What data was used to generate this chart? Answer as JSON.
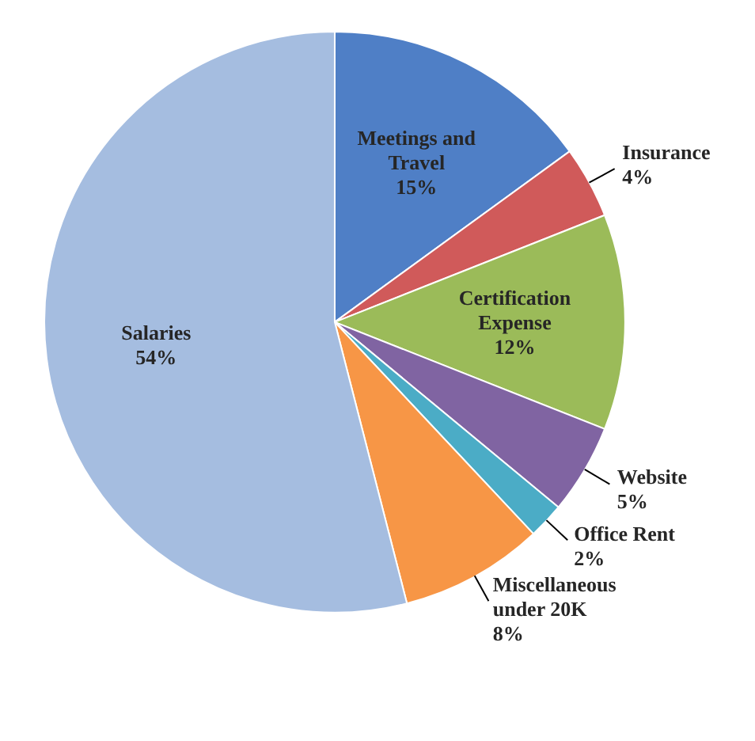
{
  "chart_data": {
    "type": "pie",
    "categories": [
      "Meetings and Travel",
      "Insurance",
      "Certification Expense",
      "Website",
      "Office Rent",
      "Miscellaneous under 20K",
      "Salaries"
    ],
    "values": [
      15,
      4,
      12,
      5,
      2,
      8,
      54
    ],
    "value_labels": [
      "15%",
      "4%",
      "12%",
      "5%",
      "2%",
      "8%",
      "54%"
    ],
    "colors": [
      "#4f7fc6",
      "#d05a5a",
      "#9bbb59",
      "#8064a2",
      "#4bacc6",
      "#f79646",
      "#a5bde0"
    ]
  }
}
